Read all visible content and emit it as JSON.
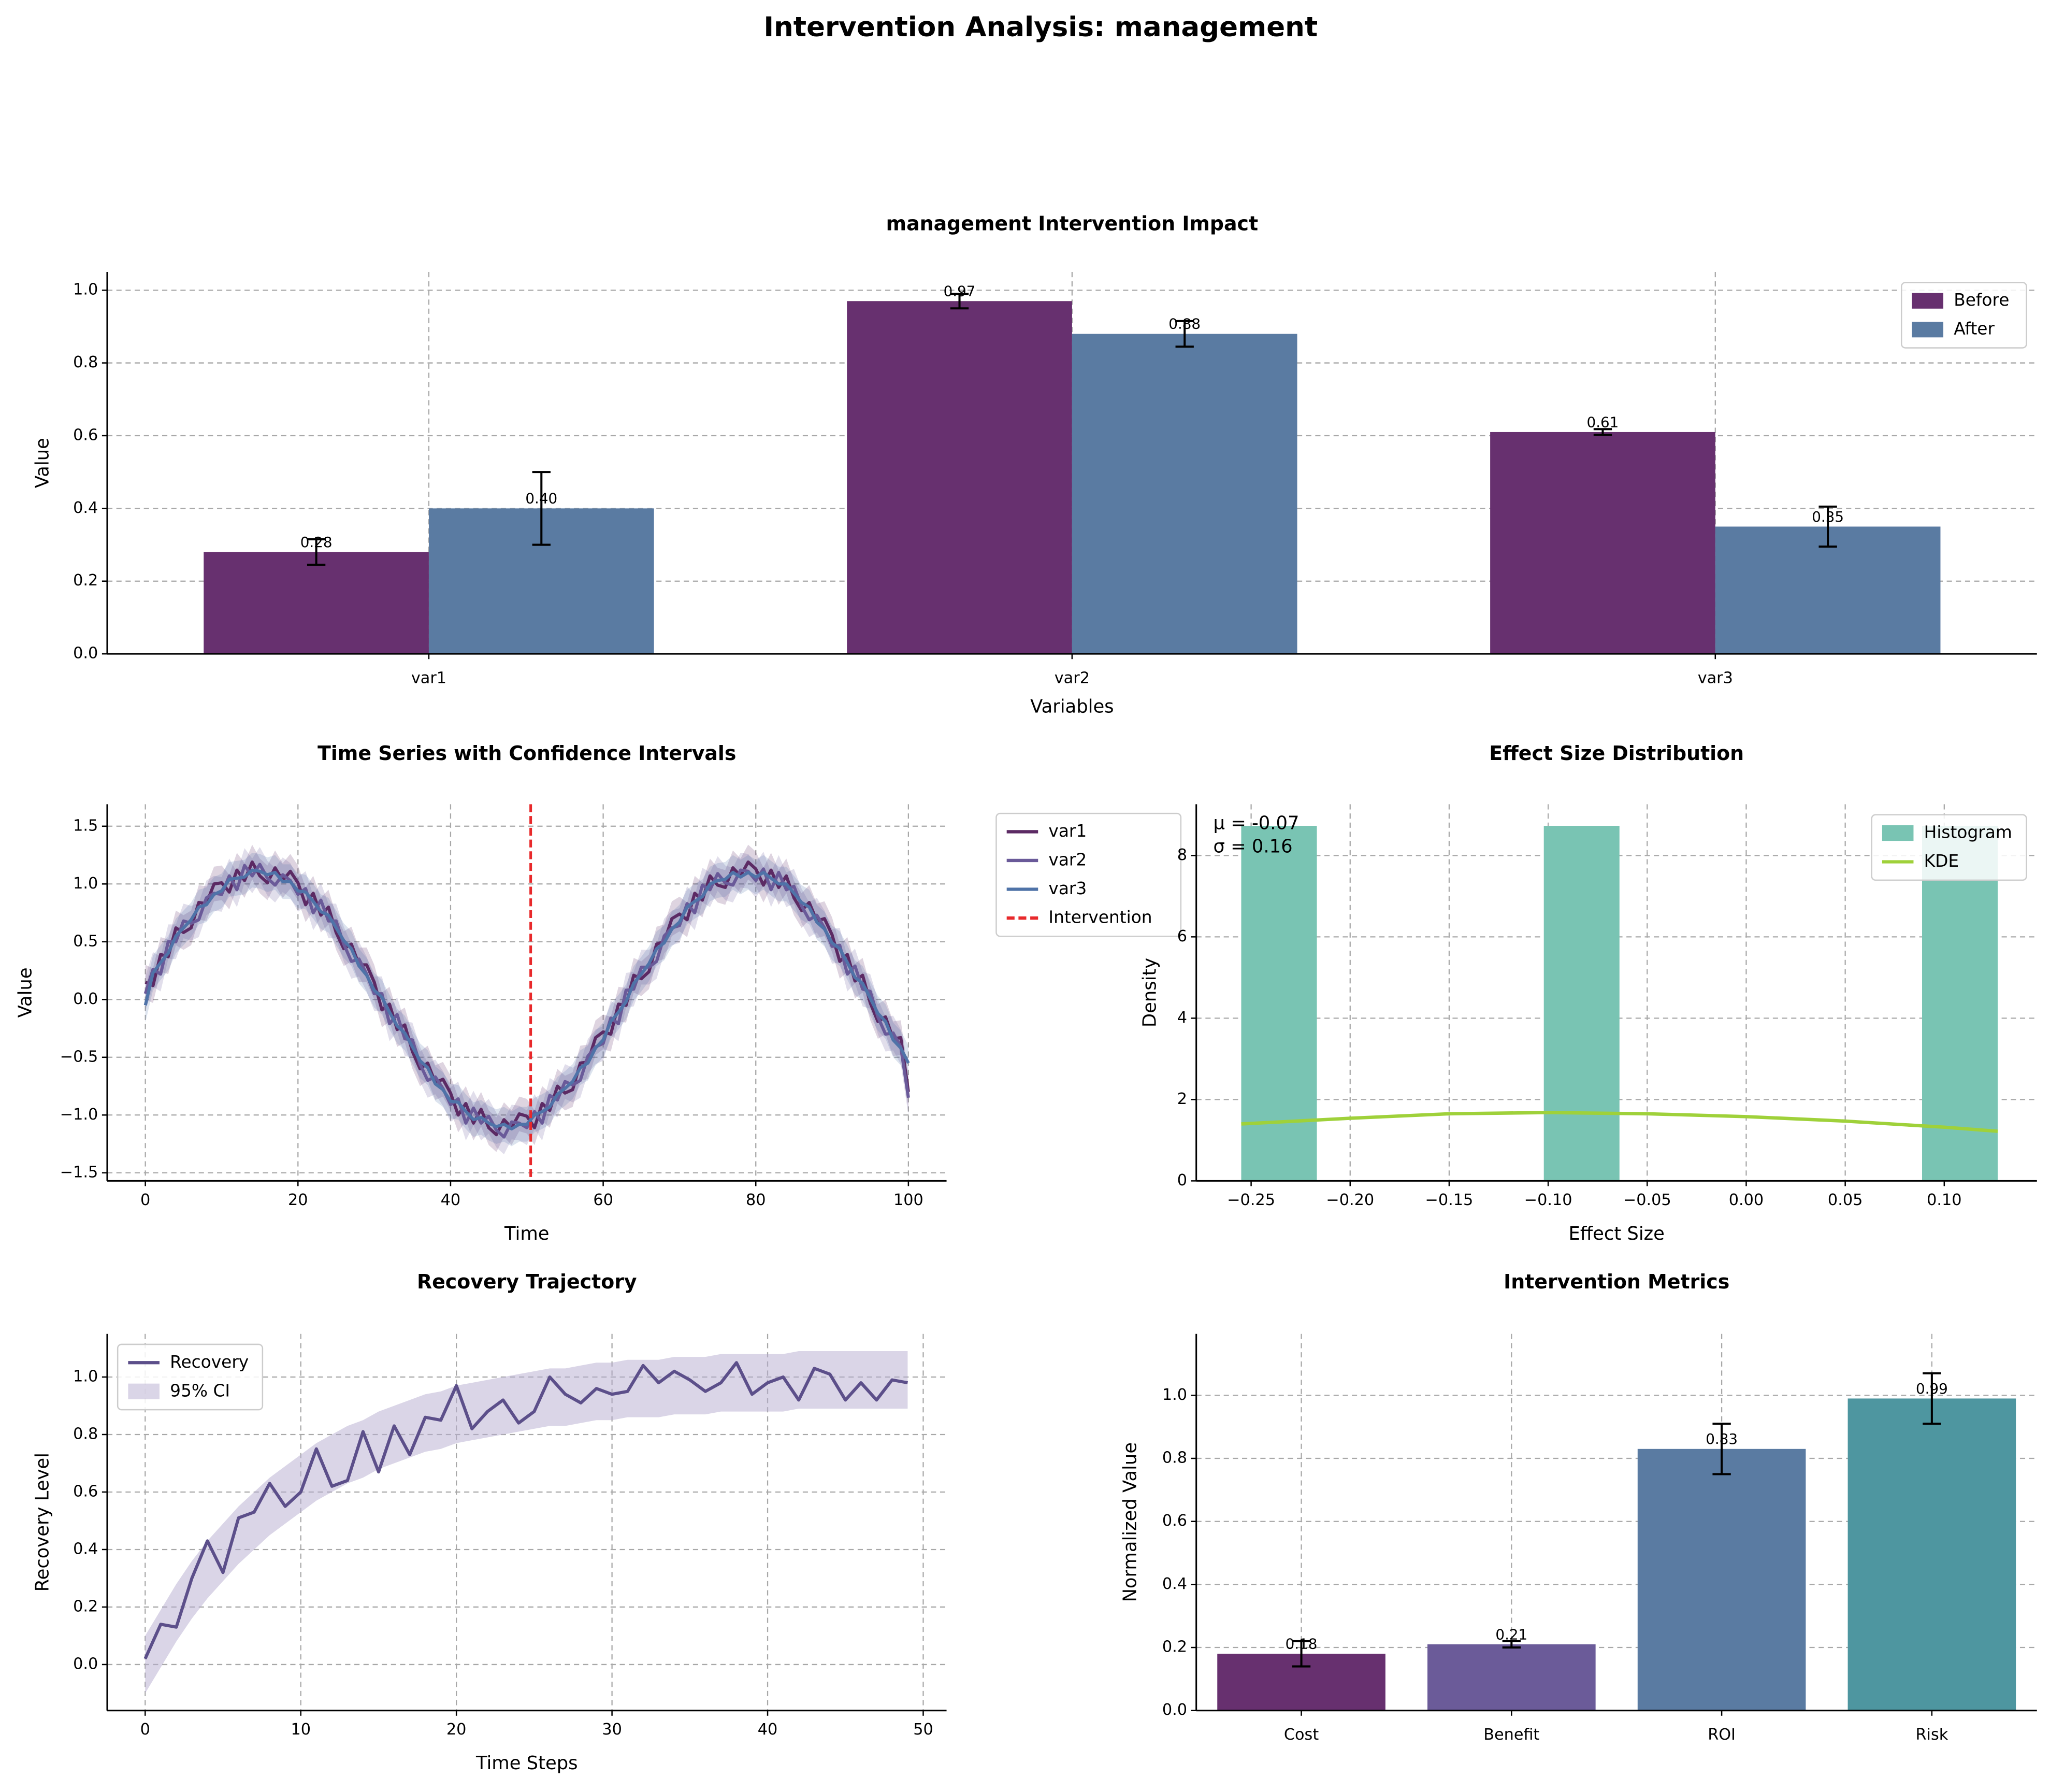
{
  "title": "Intervention Analysis: management",
  "chart_data": [
    {
      "type": "bar",
      "title": "management Intervention Impact",
      "xlabel": "Variables",
      "ylabel": "Value",
      "categories": [
        "var1",
        "var2",
        "var3"
      ],
      "series": [
        {
          "name": "Before",
          "color": "#67306f",
          "values": [
            0.28,
            0.97,
            0.61
          ],
          "errors": [
            0.035,
            0.02,
            0.008
          ],
          "value_labels": [
            "0.28",
            "0.97",
            "0.61"
          ]
        },
        {
          "name": "After",
          "color": "#5a7ba2",
          "values": [
            0.4,
            0.88,
            0.35
          ],
          "errors": [
            0.1,
            0.035,
            0.055
          ],
          "value_labels": [
            "0.40",
            "0.88",
            "0.35"
          ]
        }
      ],
      "ylim": [
        0,
        1.05
      ],
      "yticks": [
        {
          "value": 0,
          "label": "0.0"
        },
        0.2,
        0.4,
        0.6,
        0.8,
        {
          "value": 1,
          "label": "1.0"
        }
      ],
      "grid": true,
      "legend": "upper right"
    },
    {
      "type": "line",
      "title": "Time Series with Confidence Intervals",
      "xlabel": "Time",
      "ylabel": "Value",
      "x": [
        0,
        1,
        2,
        3,
        4,
        5,
        6,
        7,
        8,
        9,
        10,
        11,
        12,
        13,
        14,
        15,
        16,
        17,
        18,
        19,
        20,
        21,
        22,
        23,
        24,
        25,
        26,
        27,
        28,
        29,
        30,
        31,
        32,
        33,
        34,
        35,
        36,
        37,
        38,
        39,
        40,
        41,
        42,
        43,
        44,
        45,
        46,
        47,
        48,
        49,
        50,
        51,
        52,
        53,
        54,
        55,
        56,
        57,
        58,
        59,
        60,
        61,
        62,
        63,
        64,
        65,
        66,
        67,
        68,
        69,
        70,
        71,
        72,
        73,
        74,
        75,
        76,
        77,
        78,
        79,
        80,
        81,
        82,
        83,
        84,
        85,
        86,
        87,
        88,
        89,
        90,
        91,
        92,
        93,
        94,
        95,
        96,
        97,
        98,
        99,
        100
      ],
      "series": [
        {
          "name": "var1",
          "color": "#5c2a64",
          "ci": 0.15,
          "values": [
            0.15,
            0.12,
            0.39,
            0.37,
            0.62,
            0.58,
            0.62,
            0.84,
            0.83,
            1.0,
            1.01,
            0.93,
            1.12,
            1.03,
            1.19,
            1.07,
            1.01,
            1.14,
            1.03,
            1.11,
            1.01,
            0.82,
            0.92,
            0.73,
            0.8,
            0.58,
            0.44,
            0.48,
            0.3,
            0.3,
            0.15,
            -0.09,
            -0.04,
            -0.26,
            -0.22,
            -0.45,
            -0.6,
            -0.55,
            -0.72,
            -0.69,
            -0.81,
            -1.0,
            -0.9,
            -1.07,
            -0.95,
            -1.11,
            -1.17,
            -1.04,
            -1.11,
            -0.99,
            -1.01,
            -1.11,
            -0.9,
            -0.96,
            -0.75,
            -0.81,
            -0.78,
            -0.55,
            -0.54,
            -0.33,
            -0.28,
            -0.3,
            -0.04,
            -0.05,
            0.21,
            0.18,
            0.24,
            0.48,
            0.5,
            0.7,
            0.74,
            0.69,
            0.92,
            0.86,
            1.07,
            0.99,
            0.97,
            1.14,
            1.07,
            1.19,
            1.13,
            0.99,
            1.12,
            0.97,
            1.07,
            0.88,
            0.77,
            0.84,
            0.68,
            0.7,
            0.56,
            0.33,
            0.39,
            0.16,
            0.21,
            -0.03,
            -0.19,
            -0.15,
            -0.34,
            -0.33,
            -0.8
          ]
        },
        {
          "name": "var2",
          "color": "#6a5a99",
          "ci": 0.15,
          "values": [
            0.05,
            0.26,
            0.22,
            0.5,
            0.5,
            0.68,
            0.66,
            0.69,
            0.88,
            0.92,
            0.91,
            1.07,
            0.95,
            1.16,
            1.07,
            1.17,
            1.05,
            0.99,
            1.08,
            1.03,
            0.91,
            0.96,
            0.75,
            0.86,
            0.68,
            0.68,
            0.48,
            0.33,
            0.35,
            0.22,
            0.05,
            0.05,
            -0.21,
            -0.13,
            -0.34,
            -0.35,
            -0.56,
            -0.7,
            -0.67,
            -0.77,
            -0.91,
            -0.86,
            -1.07,
            -0.94,
            -1.07,
            -1.01,
            -1.13,
            -1.19,
            -1.06,
            -1.07,
            -1.11,
            -0.97,
            -1.07,
            -0.83,
            -0.87,
            -0.71,
            -0.74,
            -0.7,
            -0.49,
            -0.41,
            -0.38,
            -0.16,
            -0.21,
            0.08,
            0.09,
            0.28,
            0.28,
            0.33,
            0.55,
            0.62,
            0.64,
            0.83,
            0.75,
            0.99,
            0.95,
            1.09,
            1.01,
            0.99,
            1.12,
            1.11,
            1.03,
            1.13,
            0.95,
            1.1,
            0.95,
            0.98,
            0.81,
            0.69,
            0.73,
            0.62,
            0.46,
            0.47,
            0.22,
            0.29,
            0.09,
            0.07,
            -0.15,
            -0.3,
            -0.29,
            -0.41,
            -0.85
          ]
        },
        {
          "name": "var3",
          "color": "#4f73a8",
          "ci": 0.15,
          "values": [
            -0.05,
            0.23,
            0.32,
            0.4,
            0.55,
            0.62,
            0.69,
            0.8,
            0.82,
            0.91,
            0.94,
            1.04,
            1.05,
            1.06,
            1.12,
            1.11,
            1.08,
            1.1,
            1.02,
            1.02,
            0.94,
            0.93,
            0.85,
            0.76,
            0.73,
            0.62,
            0.51,
            0.44,
            0.29,
            0.21,
            0.08,
            0.02,
            -0.11,
            -0.23,
            -0.29,
            -0.41,
            -0.53,
            -0.59,
            -0.73,
            -0.78,
            -0.88,
            -0.89,
            -0.97,
            -1.04,
            -1.02,
            -1.07,
            -1.1,
            -1.08,
            -1.12,
            -1.08,
            -1.08,
            -1.0,
            -0.97,
            -0.93,
            -0.82,
            -0.77,
            -0.71,
            -0.59,
            -0.55,
            -0.42,
            -0.35,
            -0.19,
            -0.11,
            -0.02,
            0.14,
            0.22,
            0.31,
            0.44,
            0.49,
            0.61,
            0.67,
            0.8,
            0.85,
            0.89,
            1.0,
            1.03,
            1.04,
            1.1,
            1.06,
            1.1,
            1.06,
            1.1,
            1.05,
            1.0,
            1.0,
            0.92,
            0.84,
            0.8,
            0.67,
            0.61,
            0.49,
            0.44,
            0.32,
            0.19,
            0.14,
            0.01,
            -0.12,
            -0.19,
            -0.35,
            -0.42,
            -0.55
          ]
        }
      ],
      "vline": {
        "name": "Intervention",
        "x": 50.5,
        "color": "#e8292b"
      },
      "xlim": [
        -5,
        105
      ],
      "xticks": [
        0,
        20,
        40,
        60,
        80,
        100
      ],
      "ylim": [
        -1.57,
        1.69
      ],
      "yticks": [
        {
          "value": -1.5,
          "label": "−1.5"
        },
        {
          "value": -1,
          "label": "−1.0"
        },
        {
          "value": -0.5,
          "label": "−0.5"
        },
        {
          "value": 0,
          "label": "0.0"
        },
        0.5,
        {
          "value": 1,
          "label": "1.0"
        },
        1.5
      ],
      "grid": true,
      "legend": "outside right"
    },
    {
      "type": "histogram",
      "title": "Effect Size Distribution",
      "xlabel": "Effect Size",
      "ylabel": "Density",
      "name": "Histogram",
      "color": "#79c4b3",
      "bins": [
        -0.255,
        -0.2168,
        -0.1786,
        -0.1404,
        -0.1022,
        -0.064,
        -0.0258,
        0.0124,
        0.0506,
        0.0888,
        0.127
      ],
      "counts": [
        8.73,
        0,
        0,
        0,
        8.73,
        0,
        0,
        0,
        0,
        8.73
      ],
      "kde": {
        "name": "KDE",
        "color": "#9fd13a",
        "x": [
          -0.255,
          -0.2,
          -0.15,
          -0.1,
          -0.05,
          0,
          0.05,
          0.1,
          0.127
        ],
        "values": [
          1.4,
          1.54,
          1.65,
          1.68,
          1.65,
          1.58,
          1.47,
          1.32,
          1.22
        ]
      },
      "annotations": [
        "μ = -0.07",
        "σ = 0.16"
      ],
      "xlim": [
        -0.2777,
        0.1468
      ],
      "xticks": [
        {
          "value": -0.25,
          "label": "−0.25"
        },
        {
          "value": -0.2,
          "label": "−0.20"
        },
        {
          "value": -0.15,
          "label": "−0.15"
        },
        {
          "value": -0.1,
          "label": "−0.10"
        },
        {
          "value": -0.05,
          "label": "−0.05"
        },
        {
          "value": 0,
          "label": "0.00"
        },
        0.05,
        {
          "value": 0.1,
          "label": "0.10"
        }
      ],
      "ylim": [
        0,
        9.26
      ],
      "yticks": [
        0,
        2,
        4,
        6,
        8
      ],
      "grid": true,
      "legend": "upper right"
    },
    {
      "type": "line",
      "title": "Recovery Trajectory",
      "xlabel": "Time Steps",
      "ylabel": "Recovery Level",
      "x": [
        0,
        1,
        2,
        3,
        4,
        5,
        6,
        7,
        8,
        9,
        10,
        11,
        12,
        13,
        14,
        15,
        16,
        17,
        18,
        19,
        20,
        21,
        22,
        23,
        24,
        25,
        26,
        27,
        28,
        29,
        30,
        31,
        32,
        33,
        34,
        35,
        36,
        37,
        38,
        39,
        40,
        41,
        42,
        43,
        44,
        45,
        46,
        47,
        48,
        49
      ],
      "series": [
        {
          "name": "Recovery",
          "color": "#5c4f8a",
          "values": [
            0.02,
            0.14,
            0.13,
            0.3,
            0.43,
            0.32,
            0.51,
            0.53,
            0.63,
            0.55,
            0.6,
            0.75,
            0.62,
            0.64,
            0.81,
            0.67,
            0.83,
            0.73,
            0.86,
            0.85,
            0.97,
            0.82,
            0.88,
            0.92,
            0.84,
            0.88,
            1.0,
            0.94,
            0.91,
            0.96,
            0.94,
            0.95,
            1.04,
            0.98,
            1.02,
            0.99,
            0.95,
            0.98,
            1.05,
            0.94,
            0.98,
            1.0,
            0.92,
            1.03,
            1.01,
            0.92,
            0.98,
            0.92,
            0.99,
            0.98
          ]
        }
      ],
      "band": {
        "name": "95% CI",
        "color": "#b6abd0",
        "lower": [
          -0.1,
          -0.01,
          0.08,
          0.16,
          0.23,
          0.29,
          0.35,
          0.4,
          0.45,
          0.49,
          0.53,
          0.57,
          0.6,
          0.63,
          0.65,
          0.68,
          0.7,
          0.72,
          0.74,
          0.75,
          0.77,
          0.78,
          0.79,
          0.8,
          0.81,
          0.82,
          0.83,
          0.83,
          0.84,
          0.85,
          0.85,
          0.86,
          0.86,
          0.86,
          0.87,
          0.87,
          0.87,
          0.88,
          0.88,
          0.88,
          0.88,
          0.88,
          0.89,
          0.89,
          0.89,
          0.89,
          0.89,
          0.89,
          0.89,
          0.89
        ],
        "upper": [
          0.1,
          0.19,
          0.28,
          0.36,
          0.43,
          0.49,
          0.55,
          0.6,
          0.65,
          0.69,
          0.73,
          0.77,
          0.8,
          0.83,
          0.85,
          0.88,
          0.9,
          0.92,
          0.94,
          0.95,
          0.97,
          0.98,
          0.99,
          1.0,
          1.01,
          1.02,
          1.03,
          1.03,
          1.04,
          1.05,
          1.05,
          1.06,
          1.06,
          1.06,
          1.07,
          1.07,
          1.07,
          1.08,
          1.08,
          1.08,
          1.08,
          1.08,
          1.09,
          1.09,
          1.09,
          1.09,
          1.09,
          1.09,
          1.09,
          1.09
        ]
      },
      "xlim": [
        -2.44,
        51.5
      ],
      "xticks": [
        0,
        10,
        20,
        30,
        40,
        50
      ],
      "ylim": [
        -0.16,
        1.15
      ],
      "yticks": [
        {
          "value": 0,
          "label": "0.0"
        },
        0.2,
        0.4,
        0.6,
        0.8,
        {
          "value": 1,
          "label": "1.0"
        }
      ],
      "grid": true,
      "legend": "upper left"
    },
    {
      "type": "bar",
      "title": "Intervention Metrics",
      "ylabel": "Normalized Value",
      "categories": [
        "Cost",
        "Benefit",
        "ROI",
        "Risk"
      ],
      "values": [
        0.18,
        0.21,
        0.83,
        0.99
      ],
      "errors": [
        0.04,
        0.01,
        0.08,
        0.08
      ],
      "value_labels": [
        "0.18",
        "0.21",
        "0.83",
        "0.99"
      ],
      "colors": [
        "#67306f",
        "#6b5b99",
        "#5a7ba2",
        "#4e96a0"
      ],
      "ylim": [
        0,
        1.195
      ],
      "yticks": [
        {
          "value": 0,
          "label": "0.0"
        },
        0.2,
        0.4,
        0.6,
        0.8,
        {
          "value": 1,
          "label": "1.0"
        }
      ],
      "grid": true
    }
  ]
}
